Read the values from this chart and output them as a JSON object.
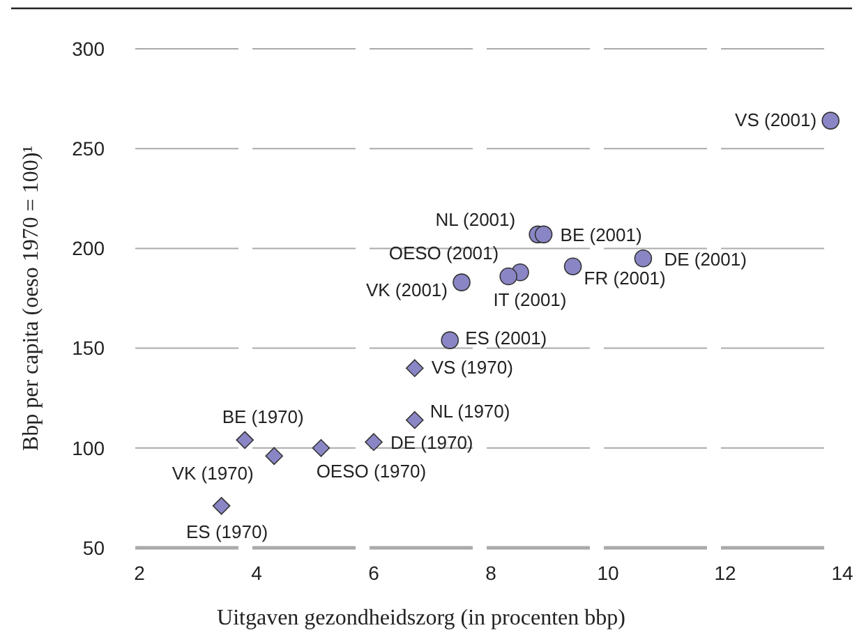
{
  "chart_data": {
    "type": "scatter",
    "xlabel": "Uitgaven gezondheidszorg (in procenten bbp)",
    "ylabel": "Bbp per capita (oeso 1970 = 100)¹",
    "xlim": [
      2,
      14
    ],
    "xticks": [
      2,
      4,
      6,
      8,
      10,
      12,
      14
    ],
    "ylim": [
      50,
      300
    ],
    "yticks": [
      50,
      100,
      150,
      200,
      250,
      300
    ],
    "grid": "y",
    "series": [
      {
        "color": "#8a86c6",
        "marker": "circle",
        "x": [
          13.8,
          8.8,
          8.9,
          10.6,
          9.4,
          8.5,
          8.3,
          7.5,
          7.3
        ],
        "values": [
          264,
          207,
          207,
          195,
          191,
          188,
          186,
          183,
          154
        ]
      },
      {
        "color": "#8a86c6",
        "marker": "diamond",
        "x": [
          6.7,
          6.7,
          6.0,
          5.1,
          4.3,
          3.8,
          3.4
        ],
        "values": [
          140,
          114,
          103,
          100,
          96,
          104,
          71
        ]
      }
    ],
    "annotations": [
      {
        "text": "VS (2001)",
        "x": 13.8,
        "y": 264
      },
      {
        "text": "NL (2001)",
        "x": 8.8,
        "y": 207
      },
      {
        "text": "BE (2001)",
        "x": 8.9,
        "y": 207
      },
      {
        "text": "DE (2001)",
        "x": 10.6,
        "y": 195
      },
      {
        "text": "FR (2001)",
        "x": 9.4,
        "y": 191
      },
      {
        "text": "IT (2001)",
        "x": 8.5,
        "y": 188
      },
      {
        "text": "OESO (2001)",
        "x": 8.3,
        "y": 186
      },
      {
        "text": "VK (2001)",
        "x": 7.5,
        "y": 183
      },
      {
        "text": "ES (2001)",
        "x": 7.3,
        "y": 154
      },
      {
        "text": "VS (1970)",
        "x": 6.7,
        "y": 140
      },
      {
        "text": "NL (1970)",
        "x": 6.7,
        "y": 114
      },
      {
        "text": "DE (1970)",
        "x": 6.0,
        "y": 103
      },
      {
        "text": "OESO (1970)",
        "x": 5.1,
        "y": 100
      },
      {
        "text": "VK (1970)",
        "x": 4.3,
        "y": 96
      },
      {
        "text": "BE (1970)",
        "x": 3.8,
        "y": 104
      },
      {
        "text": "ES (1970)",
        "x": 3.4,
        "y": 71
      }
    ]
  }
}
